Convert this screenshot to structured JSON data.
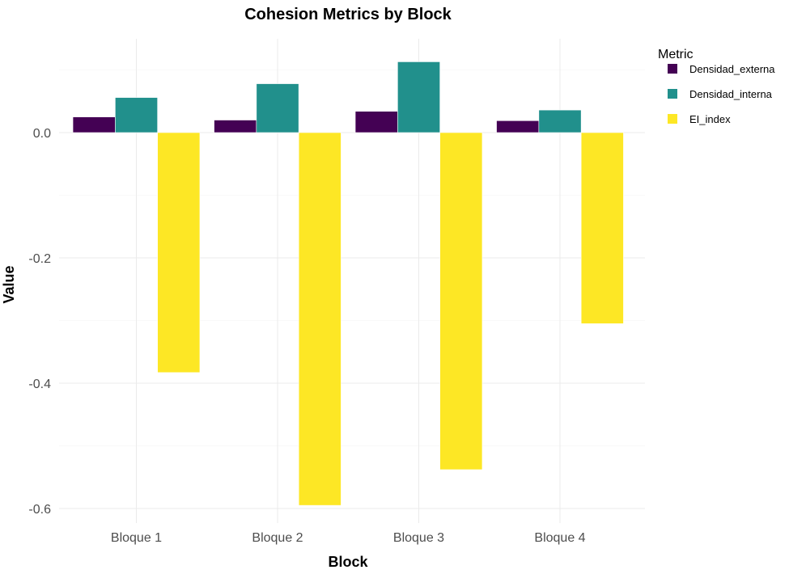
{
  "chart_data": {
    "type": "bar",
    "title": "Cohesion Metrics by Block",
    "xlabel": "Block",
    "ylabel": "Value",
    "categories": [
      "Bloque 1",
      "Bloque 2",
      "Bloque 3",
      "Bloque 4"
    ],
    "series": [
      {
        "name": "Densidad_externa",
        "color": "#440154",
        "values": [
          0.025,
          0.02,
          0.034,
          0.019
        ]
      },
      {
        "name": "Densidad_interna",
        "color": "#21908C",
        "values": [
          0.056,
          0.078,
          0.113,
          0.036
        ]
      },
      {
        "name": "EI_index",
        "color": "#FDE725",
        "values": [
          -0.383,
          -0.595,
          -0.538,
          -0.305
        ]
      }
    ],
    "ylim": [
      -0.6,
      0.113
    ],
    "yticks": [
      {
        "value": 0.0,
        "label": "0.0"
      },
      {
        "value": -0.2,
        "label": "-0.2"
      },
      {
        "value": -0.4,
        "label": "-0.4"
      },
      {
        "value": -0.6,
        "label": "-0.6"
      }
    ],
    "legend": {
      "title": "Metric",
      "position": "right"
    },
    "grid": true
  }
}
